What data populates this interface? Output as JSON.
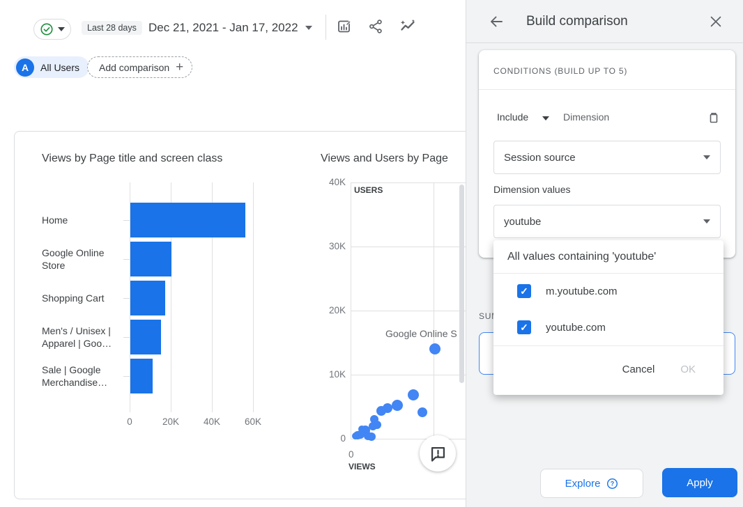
{
  "header": {
    "status_badge": "Last 28 days",
    "date_range": "Dec 21, 2021 - Jan 17, 2022"
  },
  "comparisons": {
    "badge": "A",
    "all_users": "All Users",
    "add_comparison": "Add comparison"
  },
  "panel": {
    "title": "Build comparison",
    "conditions_header": "CONDITIONS (BUILD UP TO 5)",
    "include": "Include",
    "dimension": "Dimension",
    "dimension_value": "Session source",
    "dimension_values_label": "Dimension values",
    "values_value": "youtube",
    "summary_label": "SUMMARY",
    "popup": {
      "header": "All values containing 'youtube'",
      "options": [
        {
          "label": "m.youtube.com",
          "checked": true
        },
        {
          "label": "youtube.com",
          "checked": true
        }
      ],
      "cancel": "Cancel",
      "ok": "OK"
    },
    "explore": "Explore",
    "apply": "Apply"
  },
  "chart_data": [
    {
      "type": "bar",
      "orientation": "horizontal",
      "title": "Views by Page title and screen class",
      "categories": [
        "Home",
        "Google Online\nStore",
        "Shopping Cart",
        "Men's / Unisex |\nApparel | Goo…",
        "Sale | Google\nMerchandise…"
      ],
      "values": [
        56000,
        20000,
        17000,
        15000,
        11000
      ],
      "xticks": [
        {
          "label": "0",
          "value": 0
        },
        {
          "label": "20K",
          "value": 20000
        },
        {
          "label": "40K",
          "value": 40000
        },
        {
          "label": "60K",
          "value": 60000
        }
      ],
      "xlim": [
        0,
        60000
      ],
      "grid": true
    },
    {
      "type": "scatter",
      "title": "Views and Users by Page",
      "xlabel": "VIEWS",
      "ylabel": "USERS",
      "annotation": "Google Online S",
      "yticks": [
        {
          "label": "40K",
          "value": 40000
        },
        {
          "label": "30K",
          "value": 30000
        },
        {
          "label": "20K",
          "value": 20000
        },
        {
          "label": "10K",
          "value": 10000
        },
        {
          "label": "0",
          "value": 0
        }
      ],
      "xticks": [
        {
          "label": "0",
          "value": 0
        }
      ],
      "xgrid_values": [
        20000
      ],
      "ylim": [
        0,
        40000
      ],
      "xlim": [
        0,
        27700
      ],
      "points": [
        {
          "views": 20300,
          "users": 14000,
          "r": 8,
          "label": "Google Online Store"
        },
        {
          "views": 15100,
          "users": 6900,
          "r": 8
        },
        {
          "views": 17300,
          "users": 4100,
          "r": 7
        },
        {
          "views": 11300,
          "users": 5200,
          "r": 8
        },
        {
          "views": 8900,
          "users": 4800,
          "r": 7
        },
        {
          "views": 7400,
          "users": 4300,
          "r": 7
        },
        {
          "views": 5700,
          "users": 3000,
          "r": 6
        },
        {
          "views": 6400,
          "users": 2200,
          "r": 6
        },
        {
          "views": 5400,
          "users": 2000,
          "r": 6
        },
        {
          "views": 3500,
          "users": 1300,
          "r": 7
        },
        {
          "views": 2700,
          "users": 1500,
          "r": 5
        },
        {
          "views": 3000,
          "users": 1000,
          "r": 6
        },
        {
          "views": 2400,
          "users": 600,
          "r": 6
        },
        {
          "views": 1700,
          "users": 500,
          "r": 6
        },
        {
          "views": 4200,
          "users": 400,
          "r": 6
        },
        {
          "views": 5000,
          "users": 300,
          "r": 6
        },
        {
          "views": 1200,
          "users": 400,
          "r": 5
        }
      ]
    }
  ],
  "colors": {
    "accent": "#1a73e8",
    "bar": "#1a73e8",
    "point": "#4285f4",
    "success": "#1e8e3e",
    "summary_border": "#4285f4"
  }
}
